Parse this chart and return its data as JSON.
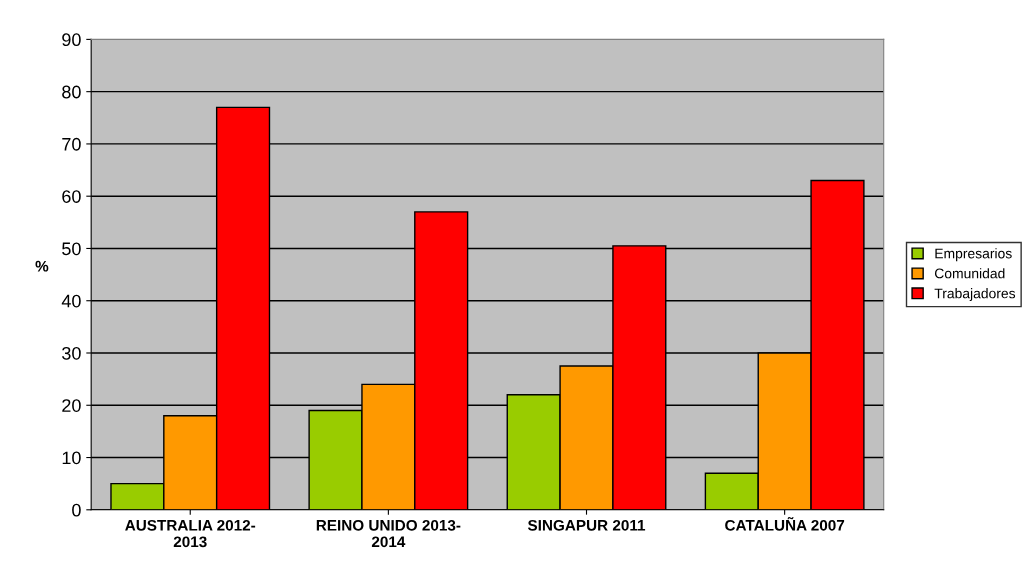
{
  "chart_data": {
    "type": "bar",
    "ylabel": "%",
    "categories": [
      "AUSTRALIA 2012-\n2013",
      "REINO UNIDO 2013-\n2014",
      "SINGAPUR 2011",
      "CATALUÑA 2007"
    ],
    "series": [
      {
        "name": "Empresarios",
        "color": "#99cc00",
        "values": [
          5,
          19,
          22,
          7
        ]
      },
      {
        "name": "Comunidad",
        "color": "#ff9900",
        "values": [
          18,
          24,
          27.5,
          30
        ]
      },
      {
        "name": "Trabajadores",
        "color": "#ff0000",
        "values": [
          77,
          57,
          50.5,
          63
        ]
      }
    ],
    "ylim": [
      0,
      90
    ],
    "yticks": [
      0,
      10,
      20,
      30,
      40,
      50,
      60,
      70,
      80,
      90
    ],
    "grid": "y",
    "legend": "right"
  }
}
